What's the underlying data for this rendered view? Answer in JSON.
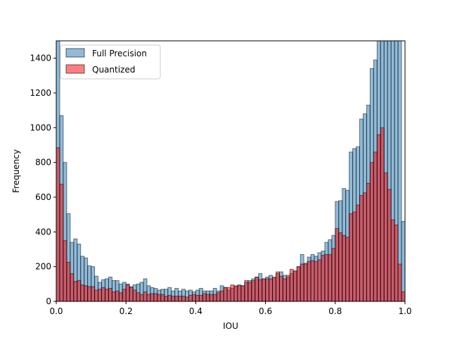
{
  "chart_data": {
    "type": "bar",
    "subtype": "overlaid-histogram",
    "title": "",
    "xlabel": "IOU",
    "ylabel": "Frequency",
    "xlim": [
      0.0,
      1.0
    ],
    "ylim": [
      0,
      1500
    ],
    "xticks": [
      "0.0",
      "0.2",
      "0.4",
      "0.6",
      "0.8",
      "1.0"
    ],
    "yticks": [
      "0",
      "200",
      "400",
      "600",
      "800",
      "1000",
      "1200",
      "1400"
    ],
    "grid": false,
    "legend_position": "upper-left",
    "bin_width": 0.01,
    "series": [
      {
        "name": "Full Precision",
        "color": "#1f77b4",
        "alpha": 0.5,
        "values": [
          1500,
          1070,
          800,
          505,
          340,
          360,
          330,
          260,
          250,
          205,
          200,
          145,
          110,
          125,
          130,
          140,
          120,
          120,
          100,
          110,
          100,
          85,
          95,
          100,
          110,
          130,
          90,
          80,
          75,
          65,
          70,
          70,
          80,
          60,
          75,
          60,
          70,
          60,
          65,
          55,
          65,
          75,
          60,
          60,
          60,
          75,
          60,
          90,
          80,
          65,
          75,
          85,
          95,
          90,
          110,
          120,
          130,
          140,
          160,
          130,
          140,
          150,
          135,
          160,
          170,
          150,
          140,
          160,
          175,
          200,
          270,
          220,
          255,
          270,
          260,
          280,
          290,
          340,
          355,
          380,
          575,
          580,
          650,
          640,
          860,
          880,
          890,
          1050,
          1080,
          1130,
          1340,
          1390,
          1500,
          1500,
          1500,
          1500,
          1500,
          1500,
          1500,
          460
        ]
      },
      {
        "name": "Quantized",
        "color": "#ff0000",
        "alpha": 0.5,
        "values": [
          885,
          675,
          350,
          225,
          160,
          115,
          120,
          95,
          90,
          85,
          85,
          65,
          70,
          80,
          70,
          75,
          55,
          60,
          50,
          70,
          95,
          80,
          65,
          50,
          40,
          55,
          40,
          45,
          45,
          40,
          40,
          30,
          35,
          30,
          30,
          30,
          30,
          25,
          35,
          40,
          35,
          35,
          45,
          40,
          40,
          40,
          50,
          60,
          80,
          80,
          95,
          90,
          90,
          90,
          120,
          110,
          120,
          140,
          125,
          130,
          130,
          130,
          140,
          170,
          145,
          130,
          150,
          185,
          175,
          200,
          215,
          215,
          230,
          235,
          230,
          240,
          265,
          270,
          270,
          305,
          420,
          395,
          380,
          370,
          505,
          515,
          555,
          610,
          625,
          680,
          800,
          860,
          960,
          1000,
          740,
          645,
          470,
          440,
          215,
          55
        ]
      }
    ]
  }
}
